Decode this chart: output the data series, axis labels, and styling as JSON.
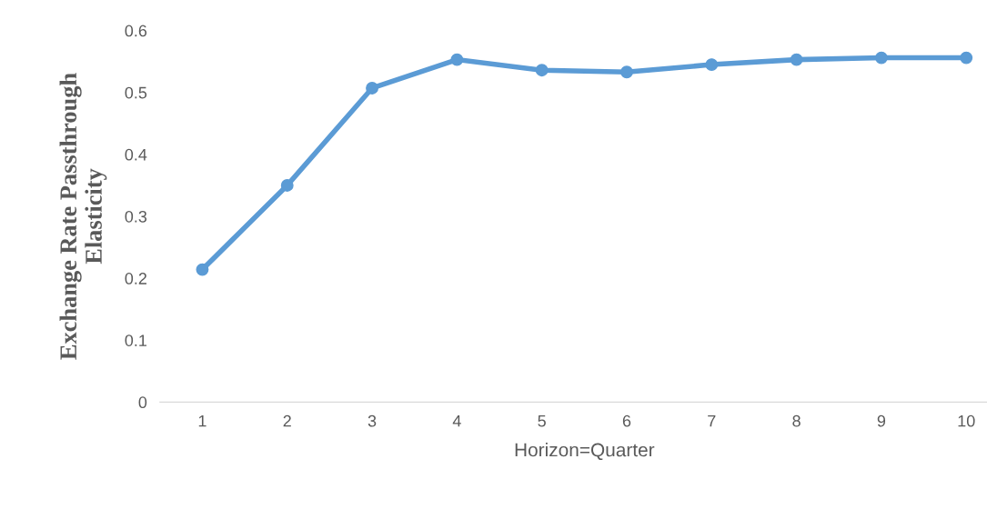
{
  "chart_data": {
    "type": "line",
    "xlabel": "Horizon=Quarter",
    "ylabel": "Exchange Rate Passthrough\nElasticity",
    "categories": [
      "1",
      "2",
      "3",
      "4",
      "5",
      "6",
      "7",
      "8",
      "9",
      "10"
    ],
    "series": [
      {
        "color": "#5b9bd5",
        "values": [
          0.214,
          0.35,
          0.507,
          0.553,
          0.536,
          0.533,
          0.545,
          0.553,
          0.556,
          0.556
        ]
      }
    ],
    "ylim": [
      0,
      0.6
    ],
    "yticks": [
      0,
      0.1,
      0.2,
      0.3,
      0.4,
      0.5,
      0.6
    ],
    "marker": "circle",
    "line_style": "solid",
    "grid": false,
    "legend": false
  }
}
